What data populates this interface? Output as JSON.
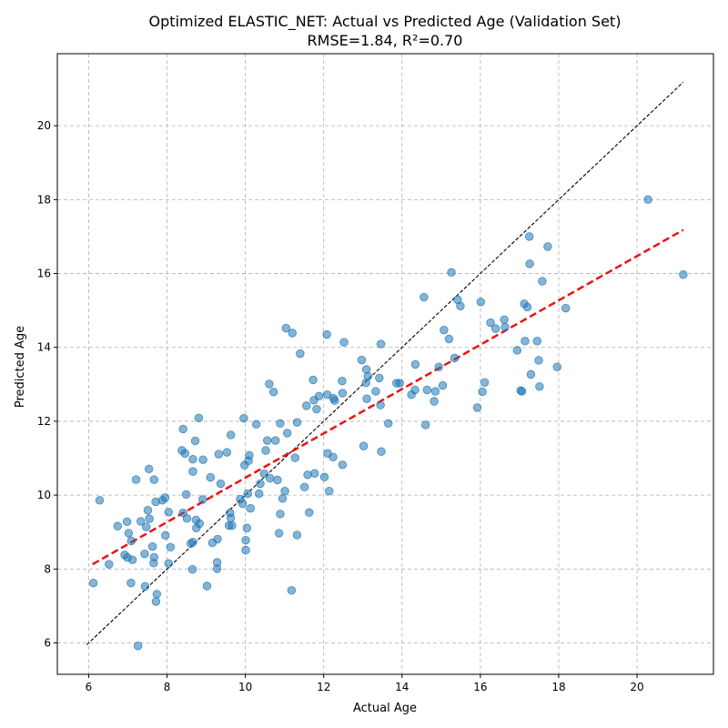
{
  "chart_data": {
    "type": "scatter",
    "title": "Optimized ELASTIC_NET: Actual vs Predicted Age (Validation Set)",
    "subtitle": "RMSE=1.84, R²=0.70",
    "xlabel": "Actual Age",
    "ylabel": "Predicted Age",
    "xlim": [
      5.2,
      21.95
    ],
    "ylim": [
      5.15,
      21.95
    ],
    "xticks": [
      6,
      8,
      10,
      12,
      14,
      16,
      18,
      20
    ],
    "yticks": [
      6,
      8,
      10,
      12,
      14,
      16,
      18,
      20
    ],
    "grid": true,
    "points": [
      {
        "x": 6.12,
        "y": 7.62
      },
      {
        "x": 6.28,
        "y": 9.86
      },
      {
        "x": 6.52,
        "y": 8.13
      },
      {
        "x": 6.74,
        "y": 9.16
      },
      {
        "x": 6.92,
        "y": 8.38
      },
      {
        "x": 6.98,
        "y": 9.28
      },
      {
        "x": 6.99,
        "y": 8.31
      },
      {
        "x": 7.02,
        "y": 8.97
      },
      {
        "x": 7.08,
        "y": 7.62
      },
      {
        "x": 7.12,
        "y": 8.25
      },
      {
        "x": 7.09,
        "y": 8.76
      },
      {
        "x": 7.21,
        "y": 10.42
      },
      {
        "x": 7.26,
        "y": 5.92
      },
      {
        "x": 7.33,
        "y": 9.29
      },
      {
        "x": 7.44,
        "y": 7.53
      },
      {
        "x": 7.43,
        "y": 8.41
      },
      {
        "x": 7.47,
        "y": 9.14
      },
      {
        "x": 7.51,
        "y": 9.59
      },
      {
        "x": 7.55,
        "y": 9.36
      },
      {
        "x": 7.54,
        "y": 10.71
      },
      {
        "x": 7.63,
        "y": 8.61
      },
      {
        "x": 7.66,
        "y": 8.16
      },
      {
        "x": 7.67,
        "y": 8.32
      },
      {
        "x": 7.67,
        "y": 10.42
      },
      {
        "x": 7.71,
        "y": 9.82
      },
      {
        "x": 7.72,
        "y": 7.12
      },
      {
        "x": 7.74,
        "y": 7.32
      },
      {
        "x": 7.88,
        "y": 9.86
      },
      {
        "x": 7.95,
        "y": 9.93
      },
      {
        "x": 7.96,
        "y": 8.91
      },
      {
        "x": 8.04,
        "y": 8.15
      },
      {
        "x": 8.04,
        "y": 9.54
      },
      {
        "x": 8.09,
        "y": 8.59
      },
      {
        "x": 8.38,
        "y": 11.21
      },
      {
        "x": 8.41,
        "y": 11.79
      },
      {
        "x": 8.41,
        "y": 9.52
      },
      {
        "x": 8.46,
        "y": 11.13
      },
      {
        "x": 8.49,
        "y": 10.02
      },
      {
        "x": 8.51,
        "y": 9.37
      },
      {
        "x": 8.61,
        "y": 8.69
      },
      {
        "x": 8.65,
        "y": 7.99
      },
      {
        "x": 8.66,
        "y": 8.73
      },
      {
        "x": 8.66,
        "y": 10.97
      },
      {
        "x": 8.66,
        "y": 10.64
      },
      {
        "x": 8.72,
        "y": 11.47
      },
      {
        "x": 8.74,
        "y": 9.33
      },
      {
        "x": 8.75,
        "y": 9.11
      },
      {
        "x": 8.81,
        "y": 12.09
      },
      {
        "x": 8.83,
        "y": 9.23
      },
      {
        "x": 8.92,
        "y": 10.96
      },
      {
        "x": 8.91,
        "y": 9.88
      },
      {
        "x": 9.02,
        "y": 7.54
      },
      {
        "x": 9.11,
        "y": 10.48
      },
      {
        "x": 9.16,
        "y": 8.71
      },
      {
        "x": 9.28,
        "y": 8.01
      },
      {
        "x": 9.28,
        "y": 8.18
      },
      {
        "x": 9.29,
        "y": 8.81
      },
      {
        "x": 9.32,
        "y": 11.11
      },
      {
        "x": 9.37,
        "y": 10.31
      },
      {
        "x": 9.53,
        "y": 11.16
      },
      {
        "x": 9.58,
        "y": 9.18
      },
      {
        "x": 9.61,
        "y": 9.52
      },
      {
        "x": 9.63,
        "y": 11.63
      },
      {
        "x": 9.63,
        "y": 9.38
      },
      {
        "x": 9.66,
        "y": 9.18
      },
      {
        "x": 9.87,
        "y": 9.89
      },
      {
        "x": 9.93,
        "y": 9.77
      },
      {
        "x": 9.96,
        "y": 12.08
      },
      {
        "x": 9.98,
        "y": 10.81
      },
      {
        "x": 10.01,
        "y": 8.51
      },
      {
        "x": 10.01,
        "y": 8.78
      },
      {
        "x": 10.04,
        "y": 9.11
      },
      {
        "x": 10.06,
        "y": 10.04
      },
      {
        "x": 10.08,
        "y": 10.93
      },
      {
        "x": 10.1,
        "y": 11.08
      },
      {
        "x": 10.13,
        "y": 9.64
      },
      {
        "x": 10.28,
        "y": 11.92
      },
      {
        "x": 10.35,
        "y": 10.04
      },
      {
        "x": 10.38,
        "y": 10.31
      },
      {
        "x": 10.48,
        "y": 10.58
      },
      {
        "x": 10.52,
        "y": 11.21
      },
      {
        "x": 10.56,
        "y": 11.48
      },
      {
        "x": 10.61,
        "y": 13.01
      },
      {
        "x": 10.63,
        "y": 10.46
      },
      {
        "x": 10.72,
        "y": 12.79
      },
      {
        "x": 10.77,
        "y": 11.48
      },
      {
        "x": 10.82,
        "y": 10.41
      },
      {
        "x": 10.86,
        "y": 8.97
      },
      {
        "x": 10.89,
        "y": 9.49
      },
      {
        "x": 10.89,
        "y": 11.94
      },
      {
        "x": 10.95,
        "y": 9.91
      },
      {
        "x": 11.01,
        "y": 10.11
      },
      {
        "x": 11.04,
        "y": 14.52
      },
      {
        "x": 11.07,
        "y": 11.68
      },
      {
        "x": 11.18,
        "y": 7.42
      },
      {
        "x": 11.2,
        "y": 14.39
      },
      {
        "x": 11.27,
        "y": 11.01
      },
      {
        "x": 11.32,
        "y": 8.92
      },
      {
        "x": 11.32,
        "y": 11.97
      },
      {
        "x": 11.4,
        "y": 13.83
      },
      {
        "x": 11.51,
        "y": 10.22
      },
      {
        "x": 11.56,
        "y": 12.42
      },
      {
        "x": 11.59,
        "y": 10.55
      },
      {
        "x": 11.63,
        "y": 9.53
      },
      {
        "x": 11.73,
        "y": 13.12
      },
      {
        "x": 11.75,
        "y": 12.57
      },
      {
        "x": 11.77,
        "y": 10.59
      },
      {
        "x": 11.82,
        "y": 12.33
      },
      {
        "x": 11.88,
        "y": 12.68
      },
      {
        "x": 12.02,
        "y": 10.49
      },
      {
        "x": 12.08,
        "y": 14.35
      },
      {
        "x": 12.09,
        "y": 12.72
      },
      {
        "x": 12.1,
        "y": 11.13
      },
      {
        "x": 12.14,
        "y": 10.11
      },
      {
        "x": 12.24,
        "y": 11.03
      },
      {
        "x": 12.25,
        "y": 12.62
      },
      {
        "x": 12.28,
        "y": 12.56
      },
      {
        "x": 12.47,
        "y": 13.09
      },
      {
        "x": 12.48,
        "y": 12.76
      },
      {
        "x": 12.48,
        "y": 10.82
      },
      {
        "x": 12.52,
        "y": 14.14
      },
      {
        "x": 12.97,
        "y": 13.66
      },
      {
        "x": 13.02,
        "y": 11.33
      },
      {
        "x": 13.08,
        "y": 13.04
      },
      {
        "x": 13.09,
        "y": 13.4
      },
      {
        "x": 13.1,
        "y": 12.61
      },
      {
        "x": 13.13,
        "y": 13.22
      },
      {
        "x": 13.33,
        "y": 12.81
      },
      {
        "x": 13.42,
        "y": 13.17
      },
      {
        "x": 13.45,
        "y": 12.44
      },
      {
        "x": 13.46,
        "y": 14.09
      },
      {
        "x": 13.47,
        "y": 11.18
      },
      {
        "x": 13.65,
        "y": 11.94
      },
      {
        "x": 13.86,
        "y": 13.03
      },
      {
        "x": 13.94,
        "y": 13.03
      },
      {
        "x": 14.24,
        "y": 12.72
      },
      {
        "x": 14.33,
        "y": 12.85
      },
      {
        "x": 14.34,
        "y": 13.54
      },
      {
        "x": 14.56,
        "y": 15.36
      },
      {
        "x": 14.6,
        "y": 11.9
      },
      {
        "x": 14.64,
        "y": 12.85
      },
      {
        "x": 14.82,
        "y": 12.54
      },
      {
        "x": 14.85,
        "y": 12.81
      },
      {
        "x": 14.94,
        "y": 13.47
      },
      {
        "x": 15.04,
        "y": 12.97
      },
      {
        "x": 15.07,
        "y": 14.47
      },
      {
        "x": 15.2,
        "y": 14.23
      },
      {
        "x": 15.26,
        "y": 16.03
      },
      {
        "x": 15.34,
        "y": 13.71
      },
      {
        "x": 15.42,
        "y": 15.29
      },
      {
        "x": 15.49,
        "y": 15.12
      },
      {
        "x": 15.92,
        "y": 12.37
      },
      {
        "x": 16.01,
        "y": 15.23
      },
      {
        "x": 16.05,
        "y": 12.8
      },
      {
        "x": 16.11,
        "y": 13.05
      },
      {
        "x": 16.26,
        "y": 14.67
      },
      {
        "x": 16.39,
        "y": 14.51
      },
      {
        "x": 16.61,
        "y": 14.75
      },
      {
        "x": 16.63,
        "y": 14.55
      },
      {
        "x": 16.94,
        "y": 13.92
      },
      {
        "x": 17.03,
        "y": 12.83
      },
      {
        "x": 17.06,
        "y": 12.81
      },
      {
        "x": 17.12,
        "y": 15.18
      },
      {
        "x": 17.14,
        "y": 14.17
      },
      {
        "x": 17.2,
        "y": 15.09
      },
      {
        "x": 17.25,
        "y": 17.0
      },
      {
        "x": 17.26,
        "y": 16.26
      },
      {
        "x": 17.29,
        "y": 13.27
      },
      {
        "x": 17.45,
        "y": 14.17
      },
      {
        "x": 17.49,
        "y": 13.65
      },
      {
        "x": 17.51,
        "y": 12.94
      },
      {
        "x": 17.58,
        "y": 15.79
      },
      {
        "x": 17.72,
        "y": 16.73
      },
      {
        "x": 17.96,
        "y": 13.47
      },
      {
        "x": 18.18,
        "y": 15.06
      },
      {
        "x": 20.28,
        "y": 18.0
      },
      {
        "x": 21.18,
        "y": 15.97
      }
    ],
    "identity_line": {
      "x": [
        5.95,
        21.18
      ],
      "y": [
        5.95,
        21.18
      ],
      "color": "#000000",
      "style": "dashed"
    },
    "fit_line": {
      "x": [
        6.1,
        21.18
      ],
      "y": [
        8.13,
        17.18
      ],
      "color": "#ee1111",
      "style": "dashed"
    },
    "point_color": "#1f77b4",
    "point_opacity": 0.55
  }
}
